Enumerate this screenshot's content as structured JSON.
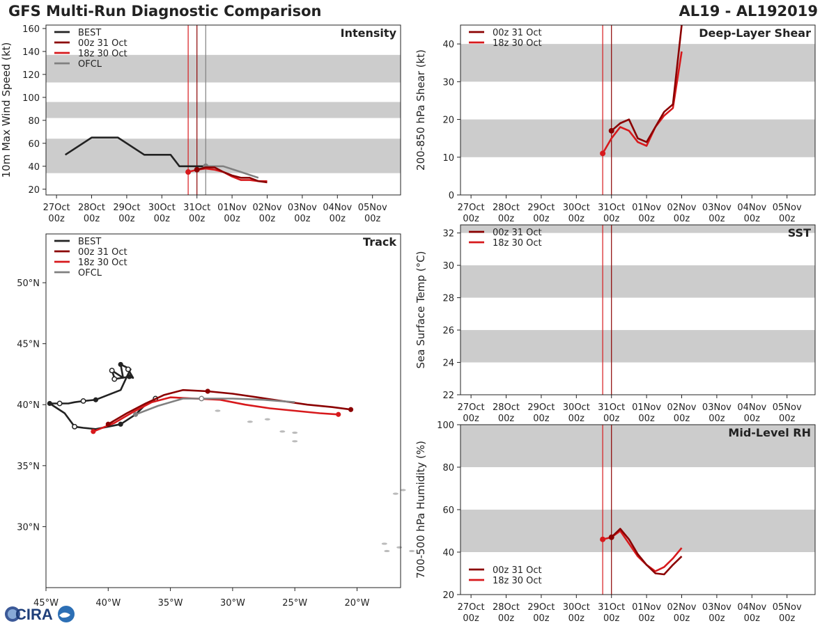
{
  "header": {
    "title": "GFS Multi-Run Diagnostic Comparison",
    "storm_id": "AL19 - AL192019"
  },
  "logo": {
    "text": "CIRA"
  },
  "colors": {
    "best": "#222222",
    "run_00z": "#8b0000",
    "run_18z": "#d7191c",
    "ofcl": "#808080",
    "band": "#cccccc"
  },
  "time_ticks": {
    "dates": [
      "27Oct",
      "28Oct",
      "29Oct",
      "30Oct",
      "31Oct",
      "01Nov",
      "02Nov",
      "03Nov",
      "04Nov",
      "05Nov"
    ],
    "hours": [
      "00z",
      "00z",
      "00z",
      "00z",
      "00z",
      "00z",
      "00z",
      "00z",
      "00z",
      "00z"
    ]
  },
  "chart_data": [
    {
      "id": "intensity",
      "type": "line",
      "title": "Intensity",
      "ylabel": "10m Max Wind Speed (kt)",
      "ylim": [
        15,
        163
      ],
      "yticks": [
        20,
        40,
        60,
        80,
        100,
        120,
        140,
        160
      ],
      "bands": [
        [
          34,
          64
        ],
        [
          82,
          96
        ],
        [
          113,
          137
        ]
      ],
      "init_lines": [
        {
          "x": 3.75,
          "color": "#d7191c"
        },
        {
          "x": 4.0,
          "color": "#8b0000"
        },
        {
          "x": 4.25,
          "color": "#808080"
        }
      ],
      "legend": [
        {
          "label": "BEST",
          "key": "best"
        },
        {
          "label": "00z 31 Oct",
          "key": "run_00z"
        },
        {
          "label": "18z 30 Oct",
          "key": "run_18z"
        },
        {
          "label": "OFCL",
          "key": "ofcl"
        }
      ],
      "series": [
        {
          "name": "BEST",
          "key": "best",
          "x": [
            0.25,
            1.0,
            1.75,
            2.5,
            3.25,
            3.5,
            4.0,
            4.25
          ],
          "y": [
            50,
            65,
            65,
            50,
            50,
            40,
            40,
            40
          ]
        },
        {
          "name": "OFCL",
          "key": "ofcl",
          "x": [
            4.25,
            4.75,
            5.25,
            5.75
          ],
          "y": [
            40,
            40,
            35,
            30
          ],
          "start_marker": true
        },
        {
          "name": "18z 30 Oct",
          "key": "run_18z",
          "x": [
            3.75,
            4.0,
            4.25,
            4.5,
            4.75,
            5.0,
            5.25,
            5.5,
            5.75,
            6.0
          ],
          "y": [
            35,
            37,
            38,
            37,
            35,
            31,
            28,
            28,
            27,
            27
          ],
          "start_marker": true
        },
        {
          "name": "00z 31 Oct",
          "key": "run_00z",
          "x": [
            4.0,
            4.25,
            4.5,
            4.75,
            5.0,
            5.25,
            5.5,
            5.75,
            6.0
          ],
          "y": [
            37,
            39,
            39,
            35,
            32,
            30,
            30,
            27,
            26
          ],
          "start_marker": true
        }
      ]
    },
    {
      "id": "shear",
      "type": "line",
      "title": "Deep-Layer Shear",
      "ylabel": "200-850 hPa Shear (kt)",
      "ylim": [
        0,
        45
      ],
      "yticks": [
        0,
        10,
        20,
        30,
        40
      ],
      "bands": [
        [
          10,
          20
        ],
        [
          30,
          40
        ]
      ],
      "init_lines": [
        {
          "x": 3.75,
          "color": "#d7191c"
        },
        {
          "x": 4.0,
          "color": "#8b0000"
        }
      ],
      "legend": [
        {
          "label": "00z 31 Oct",
          "key": "run_00z"
        },
        {
          "label": "18z 30 Oct",
          "key": "run_18z"
        }
      ],
      "series": [
        {
          "name": "18z 30 Oct",
          "key": "run_18z",
          "x": [
            3.75,
            4.0,
            4.25,
            4.5,
            4.75,
            5.0,
            5.25,
            5.5,
            5.75,
            6.0
          ],
          "y": [
            11,
            15,
            18,
            17,
            14,
            13,
            18,
            21,
            23,
            38
          ],
          "start_marker": true
        },
        {
          "name": "00z 31 Oct",
          "key": "run_00z",
          "x": [
            4.0,
            4.25,
            4.5,
            4.75,
            5.0,
            5.25,
            5.5,
            5.75,
            6.0
          ],
          "y": [
            17,
            19,
            20,
            15,
            14,
            18,
            22,
            24,
            45
          ],
          "start_marker": true
        }
      ]
    },
    {
      "id": "sst",
      "type": "line",
      "title": "SST",
      "ylabel": "Sea Surface Temp (°C)",
      "ylim": [
        22,
        32.5
      ],
      "yticks": [
        22,
        24,
        26,
        28,
        30,
        32
      ],
      "bands": [
        [
          24,
          26
        ],
        [
          28,
          30
        ],
        [
          32,
          33
        ]
      ],
      "init_lines": [
        {
          "x": 3.75,
          "color": "#d7191c"
        },
        {
          "x": 4.0,
          "color": "#8b0000"
        }
      ],
      "legend": [
        {
          "label": "00z 31 Oct",
          "key": "run_00z"
        },
        {
          "label": "18z 30 Oct",
          "key": "run_18z"
        }
      ],
      "series": []
    },
    {
      "id": "rh",
      "type": "line",
      "title": "Mid-Level RH",
      "ylabel": "700-500 hPa Humidity (%)",
      "ylim": [
        20,
        100
      ],
      "yticks": [
        20,
        40,
        60,
        80,
        100
      ],
      "bands": [
        [
          40,
          60
        ],
        [
          80,
          100
        ]
      ],
      "init_lines": [
        {
          "x": 3.75,
          "color": "#d7191c"
        },
        {
          "x": 4.0,
          "color": "#8b0000"
        }
      ],
      "legend": [
        {
          "label": "00z 31 Oct",
          "key": "run_00z"
        },
        {
          "label": "18z 30 Oct",
          "key": "run_18z"
        }
      ],
      "series": [
        {
          "name": "18z 30 Oct",
          "key": "run_18z",
          "x": [
            3.75,
            4.0,
            4.25,
            4.5,
            4.75,
            5.0,
            5.25,
            5.5,
            5.75,
            6.0
          ],
          "y": [
            46,
            47,
            50,
            44,
            38,
            34,
            31,
            33,
            37,
            42
          ],
          "start_marker": true
        },
        {
          "name": "00z 31 Oct",
          "key": "run_00z",
          "x": [
            4.0,
            4.25,
            4.5,
            4.75,
            5.0,
            5.25,
            5.5,
            5.75,
            6.0
          ],
          "y": [
            47,
            51,
            46,
            39,
            34,
            30,
            29.5,
            34,
            38
          ],
          "start_marker": true
        }
      ]
    },
    {
      "id": "track",
      "type": "scatter",
      "title": "Track",
      "xlabel": "",
      "ylabel": "",
      "xlim": [
        -45,
        -16.5
      ],
      "ylim": [
        25,
        54
      ],
      "xticks": [
        -45,
        -40,
        -35,
        -30,
        -25,
        -20
      ],
      "xtick_labels": [
        "45°W",
        "40°W",
        "35°W",
        "30°W",
        "25°W",
        "20°W"
      ],
      "yticks": [
        30,
        35,
        40,
        45,
        50
      ],
      "ytick_labels": [
        "30°N",
        "35°N",
        "40°N",
        "45°N",
        "50°N"
      ],
      "legend": [
        {
          "label": "BEST",
          "key": "best"
        },
        {
          "label": "00z 31 Oct",
          "key": "run_00z"
        },
        {
          "label": "18z 30 Oct",
          "key": "run_18z"
        },
        {
          "label": "OFCL",
          "key": "ofcl"
        }
      ],
      "series": [
        {
          "name": "BEST",
          "key": "best",
          "lon": [
            -36.2,
            -37.0,
            -37.8,
            -39.0,
            -40.0,
            -41.0,
            -42.0,
            -42.7,
            -43.5,
            -44.7,
            -43.9,
            -43.2,
            -42.7,
            -42.0,
            -41.0,
            -40.0,
            -39.0,
            -38.5,
            -38.2,
            -39.0,
            -38.8,
            -39.7,
            -39.5,
            -39.5,
            -38.3,
            -38.0,
            -38.4
          ],
          "lat": [
            40.5,
            40.0,
            39.2,
            38.4,
            38.2,
            38.0,
            38.1,
            38.2,
            39.3,
            40.1,
            40.1,
            40.1,
            40.2,
            40.3,
            40.4,
            40.8,
            41.2,
            42.3,
            42.9,
            43.3,
            42.2,
            42.8,
            42.2,
            42.1,
            42.3,
            42.2,
            42.9
          ],
          "filled": [
            3,
            9,
            14,
            19,
            24
          ],
          "open": [
            0,
            7,
            10,
            13,
            21,
            23,
            26
          ]
        },
        {
          "name": "18z 30 Oct",
          "key": "run_18z",
          "lon": [
            -41.2,
            -39.5,
            -38.0,
            -36.5,
            -35.0,
            -33.0,
            -31.0,
            -29.0,
            -27.0,
            -25.0,
            -23.0,
            -21.5
          ],
          "lat": [
            37.8,
            38.5,
            39.4,
            40.2,
            40.6,
            40.5,
            40.4,
            40.0,
            39.7,
            39.5,
            39.3,
            39.2
          ],
          "filled": [
            0,
            11
          ],
          "open": []
        },
        {
          "name": "00z 31 Oct",
          "key": "run_00z",
          "lon": [
            -40.0,
            -38.5,
            -37.0,
            -35.5,
            -34.0,
            -32.0,
            -30.0,
            -28.0,
            -26.0,
            -24.0,
            -22.0,
            -20.5
          ],
          "lat": [
            38.4,
            39.3,
            40.1,
            40.8,
            41.2,
            41.1,
            40.9,
            40.6,
            40.3,
            40.0,
            39.8,
            39.6
          ],
          "filled": [
            0,
            5,
            11
          ],
          "open": []
        },
        {
          "name": "OFCL",
          "key": "ofcl",
          "lon": [
            -37.8,
            -36.0,
            -34.0,
            -32.5,
            -30.0,
            -27.5,
            -25.0
          ],
          "lat": [
            39.2,
            39.9,
            40.5,
            40.5,
            40.5,
            40.4,
            40.2
          ],
          "filled": [
            0
          ],
          "open": [
            3
          ]
        }
      ],
      "land": [
        {
          "lon": -31.2,
          "lat": 39.5
        },
        {
          "lon": -28.6,
          "lat": 38.6
        },
        {
          "lon": -27.2,
          "lat": 38.8
        },
        {
          "lon": -26.0,
          "lat": 37.8
        },
        {
          "lon": -25.0,
          "lat": 37.7
        },
        {
          "lon": -25.0,
          "lat": 37.0
        },
        {
          "lon": -16.9,
          "lat": 32.7
        },
        {
          "lon": -16.3,
          "lat": 33.0
        },
        {
          "lon": -17.8,
          "lat": 28.6
        },
        {
          "lon": -17.6,
          "lat": 28.0
        },
        {
          "lon": -16.6,
          "lat": 28.3
        },
        {
          "lon": -15.6,
          "lat": 28.0
        }
      ]
    }
  ]
}
